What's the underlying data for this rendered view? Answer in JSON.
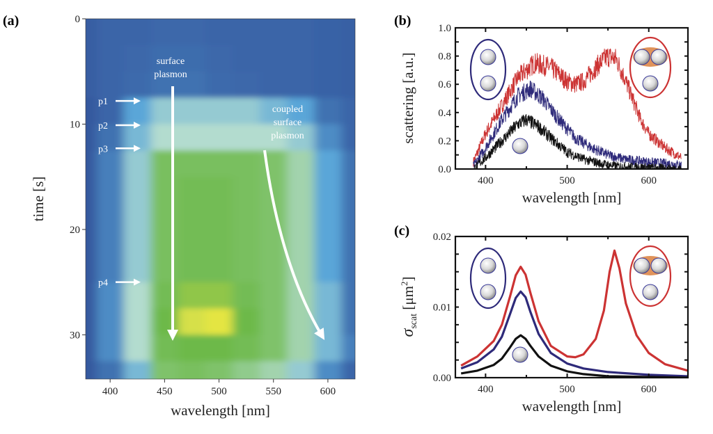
{
  "panels": {
    "a": "(a)",
    "b": "(b)",
    "c": "(c)"
  },
  "colors": {
    "red": "#cc3333",
    "blue": "#2e2a7a",
    "black": "#111111",
    "sphere_border": "#3a3a9a",
    "coupling": "#e0935a"
  },
  "chart_data": [
    {
      "id": "a",
      "type": "heatmap",
      "xlabel": "wavelength [nm]",
      "ylabel": "time [s]",
      "xlim": [
        377.5,
        625
      ],
      "ylim": [
        0,
        34.2
      ],
      "y_inverted": true,
      "xticks": [
        400,
        450,
        500,
        550,
        600
      ],
      "yticks": [
        0,
        10,
        20,
        30
      ],
      "colormap": [
        "#34589e",
        "#5aa6d8",
        "#b3dccf",
        "#7fc26a",
        "#6db94a",
        "#d6e04a",
        "#f3ea3a"
      ],
      "x": [
        375,
        400,
        425,
        450,
        475,
        500,
        525,
        550,
        575,
        600,
        625
      ],
      "y": [
        0,
        2.5,
        5,
        7.5,
        10,
        12.5,
        15,
        17.5,
        20,
        22.5,
        25,
        27.5,
        30,
        32.5
      ],
      "z": [
        [
          0.02,
          0.05,
          0.05,
          0.06,
          0.06,
          0.05,
          0.05,
          0.05,
          0.05,
          0.04,
          0.03
        ],
        [
          0.02,
          0.05,
          0.06,
          0.08,
          0.08,
          0.06,
          0.05,
          0.05,
          0.05,
          0.04,
          0.03
        ],
        [
          0.02,
          0.05,
          0.07,
          0.1,
          0.1,
          0.07,
          0.06,
          0.05,
          0.05,
          0.04,
          0.03
        ],
        [
          0.0,
          0.05,
          0.3,
          0.4,
          0.4,
          0.4,
          0.4,
          0.35,
          0.3,
          0.1,
          0.05
        ],
        [
          0.0,
          0.1,
          0.35,
          0.45,
          0.45,
          0.45,
          0.45,
          0.45,
          0.4,
          0.2,
          0.05
        ],
        [
          0.0,
          0.15,
          0.4,
          0.65,
          0.65,
          0.65,
          0.65,
          0.6,
          0.5,
          0.3,
          0.1
        ],
        [
          0.0,
          0.15,
          0.4,
          0.65,
          0.7,
          0.7,
          0.65,
          0.6,
          0.5,
          0.3,
          0.1
        ],
        [
          0.0,
          0.15,
          0.4,
          0.65,
          0.7,
          0.7,
          0.65,
          0.6,
          0.5,
          0.3,
          0.1
        ],
        [
          0.0,
          0.15,
          0.4,
          0.65,
          0.7,
          0.7,
          0.65,
          0.6,
          0.5,
          0.3,
          0.1
        ],
        [
          0.0,
          0.15,
          0.4,
          0.65,
          0.7,
          0.7,
          0.65,
          0.6,
          0.5,
          0.3,
          0.1
        ],
        [
          0.0,
          0.2,
          0.45,
          0.7,
          0.8,
          0.8,
          0.7,
          0.6,
          0.5,
          0.35,
          0.1
        ],
        [
          0.0,
          0.2,
          0.45,
          0.75,
          0.9,
          0.95,
          0.75,
          0.6,
          0.5,
          0.35,
          0.1
        ],
        [
          0.0,
          0.2,
          0.45,
          0.7,
          0.75,
          0.75,
          0.7,
          0.6,
          0.5,
          0.35,
          0.15
        ],
        [
          0.0,
          0.1,
          0.35,
          0.6,
          0.65,
          0.6,
          0.55,
          0.5,
          0.4,
          0.2,
          0.05
        ]
      ],
      "annotations": {
        "surface_plasmon": [
          "surface",
          "plasmon"
        ],
        "coupled_surface_plasmon": [
          "coupled",
          "surface",
          "plasmon"
        ],
        "markers": [
          {
            "label": "p1",
            "time": 7.8
          },
          {
            "label": "p2",
            "time": 10.1
          },
          {
            "label": "p3",
            "time": 12.3
          },
          {
            "label": "p4",
            "time": 25
          }
        ]
      }
    },
    {
      "id": "b",
      "type": "line",
      "xlabel": "wavelength [nm]",
      "ylabel": "scattering [a.u.]",
      "xlim": [
        363,
        648
      ],
      "ylim": [
        0,
        1.0
      ],
      "xticks": [
        400,
        500,
        600
      ],
      "yticks": [
        "0.0",
        "0.2",
        "0.4",
        "0.6",
        "0.8",
        "1.0"
      ],
      "noisy": true,
      "series": [
        {
          "color": "red",
          "x": [
            385,
            400,
            420,
            440,
            460,
            480,
            500,
            510,
            520,
            540,
            550,
            560,
            570,
            580,
            590,
            600,
            620,
            640
          ],
          "y": [
            0.05,
            0.25,
            0.45,
            0.65,
            0.75,
            0.72,
            0.62,
            0.6,
            0.62,
            0.75,
            0.8,
            0.78,
            0.65,
            0.5,
            0.35,
            0.25,
            0.15,
            0.08
          ]
        },
        {
          "color": "blue",
          "x": [
            385,
            400,
            420,
            440,
            455,
            470,
            490,
            510,
            530,
            550,
            570,
            600,
            640
          ],
          "y": [
            0.02,
            0.15,
            0.35,
            0.52,
            0.57,
            0.5,
            0.35,
            0.22,
            0.15,
            0.1,
            0.07,
            0.05,
            0.03
          ]
        },
        {
          "color": "black",
          "x": [
            385,
            400,
            420,
            440,
            450,
            465,
            480,
            500,
            520,
            540,
            560,
            600,
            640
          ],
          "y": [
            0.0,
            0.08,
            0.2,
            0.32,
            0.35,
            0.3,
            0.22,
            0.12,
            0.07,
            0.04,
            0.02,
            0.01,
            0.0
          ]
        }
      ]
    },
    {
      "id": "c",
      "type": "line",
      "xlabel": "wavelength [nm]",
      "ylabel": "σscat [μm2]",
      "ylabel_parts": {
        "sym": "σ",
        "sub": "scat",
        "unit": "[μm",
        "sup": "2",
        "close": "]"
      },
      "xlim": [
        363,
        648
      ],
      "ylim": [
        0,
        0.02
      ],
      "xticks": [
        400,
        500,
        600
      ],
      "yticks": [
        "0.00",
        "0.01",
        "0.02"
      ],
      "series": [
        {
          "color": "red",
          "x": [
            370,
            390,
            410,
            420,
            430,
            437,
            443,
            449,
            455,
            465,
            480,
            500,
            510,
            520,
            535,
            545,
            552,
            558,
            564,
            572,
            585,
            600,
            620,
            648
          ],
          "y": [
            0.0017,
            0.003,
            0.0052,
            0.0075,
            0.0115,
            0.0145,
            0.0157,
            0.0146,
            0.012,
            0.008,
            0.0045,
            0.003,
            0.0029,
            0.0033,
            0.0055,
            0.0095,
            0.015,
            0.018,
            0.0155,
            0.0105,
            0.006,
            0.0035,
            0.0019,
            0.001
          ]
        },
        {
          "color": "blue",
          "x": [
            370,
            390,
            410,
            420,
            430,
            437,
            443,
            449,
            455,
            465,
            480,
            500,
            520,
            550,
            600,
            648
          ],
          "y": [
            0.0013,
            0.0022,
            0.004,
            0.0058,
            0.009,
            0.0113,
            0.0122,
            0.0114,
            0.0093,
            0.0062,
            0.0035,
            0.002,
            0.0013,
            0.0008,
            0.0004,
            0.0002
          ]
        },
        {
          "color": "black",
          "x": [
            370,
            390,
            410,
            420,
            430,
            437,
            443,
            449,
            455,
            465,
            480,
            500,
            520,
            550,
            600,
            648
          ],
          "y": [
            0.0006,
            0.001,
            0.0018,
            0.0027,
            0.0043,
            0.0055,
            0.006,
            0.0055,
            0.0045,
            0.003,
            0.0017,
            0.0009,
            0.0005,
            0.0002,
            0.0001,
            0.0
          ]
        }
      ]
    }
  ]
}
